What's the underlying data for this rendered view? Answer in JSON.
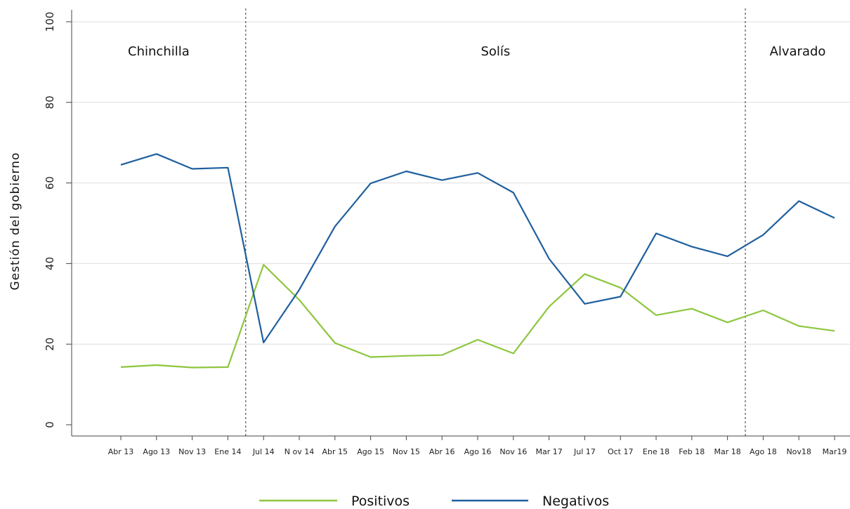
{
  "chart_data": {
    "type": "line",
    "ylabel": "Gestión del gobierno",
    "ylim": [
      0,
      100
    ],
    "yticks": [
      0,
      20,
      40,
      60,
      80,
      100
    ],
    "grid": true,
    "legend_position": "bottom",
    "categories": [
      "Abr 13",
      "Ago 13",
      "Nov 13",
      "Ene 14",
      "Jul 14",
      "N ov 14",
      "Abr 15",
      "Ago 15",
      "Nov 15",
      "Abr 16",
      "Ago 16",
      "Nov 16",
      "Mar 17",
      "Jul 17",
      "Oct 17",
      "Ene 18",
      "Feb 18",
      "Mar 18",
      "Ago 18",
      "Nov18",
      "Mar19"
    ],
    "series": [
      {
        "name": "Positivos",
        "color": "#8dc63f",
        "values": [
          14.3,
          14.8,
          14.2,
          14.3,
          39.7,
          31.0,
          20.3,
          16.8,
          17.1,
          17.3,
          21.1,
          17.7,
          29.3,
          37.4,
          34.0,
          27.2,
          28.8,
          25.4,
          28.4,
          24.5,
          23.3
        ]
      },
      {
        "name": "Negativos",
        "color": "#1f5f9e",
        "values": [
          64.5,
          67.2,
          63.5,
          63.8,
          20.4,
          33.5,
          49.2,
          59.9,
          62.9,
          60.7,
          62.5,
          57.6,
          41.2,
          30.0,
          31.8,
          47.5,
          44.2,
          41.8,
          47.1,
          55.5,
          51.3
        ]
      }
    ],
    "periods": [
      {
        "label": "Chinchilla",
        "start_index": 0,
        "end_index": 3
      },
      {
        "label": "Solís",
        "start_index": 4,
        "end_index": 17
      },
      {
        "label": "Alvarado",
        "start_index": 18,
        "end_index": 20
      }
    ]
  }
}
